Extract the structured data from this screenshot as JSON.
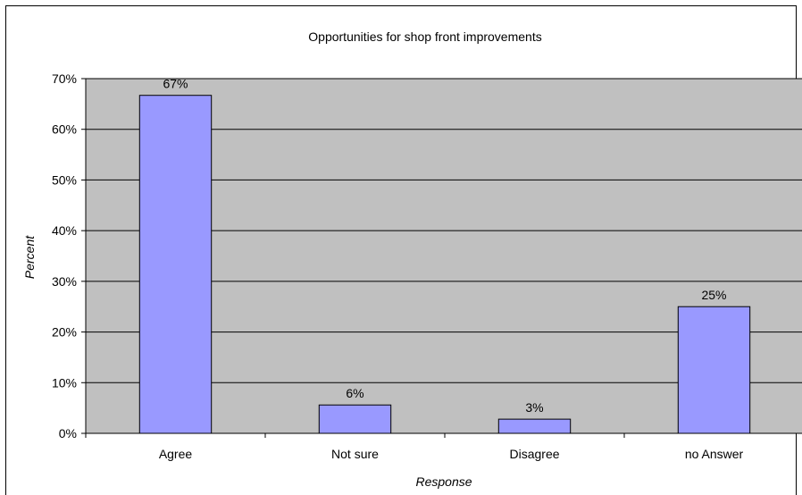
{
  "chart_data": {
    "type": "bar",
    "title": "Opportunities for shop front improvements",
    "xlabel": "Response",
    "ylabel": "Percent",
    "categories": [
      "Agree",
      "Not sure",
      "Disagree",
      "no Answer"
    ],
    "values": [
      66.7,
      5.6,
      2.8,
      25.0
    ],
    "data_labels": [
      "67%",
      "6%",
      "3%",
      "25%"
    ],
    "ylim": [
      0,
      70
    ],
    "yticks": [
      0,
      10,
      20,
      30,
      40,
      50,
      60,
      70
    ],
    "ytick_labels": [
      "0%",
      "10%",
      "20%",
      "30%",
      "40%",
      "50%",
      "60%",
      "70%"
    ],
    "grid": true,
    "legend": "none",
    "colors": {
      "bar": "#9999ff",
      "plot_bg": "#c0c0c0",
      "bar_stroke": "#000000"
    }
  }
}
